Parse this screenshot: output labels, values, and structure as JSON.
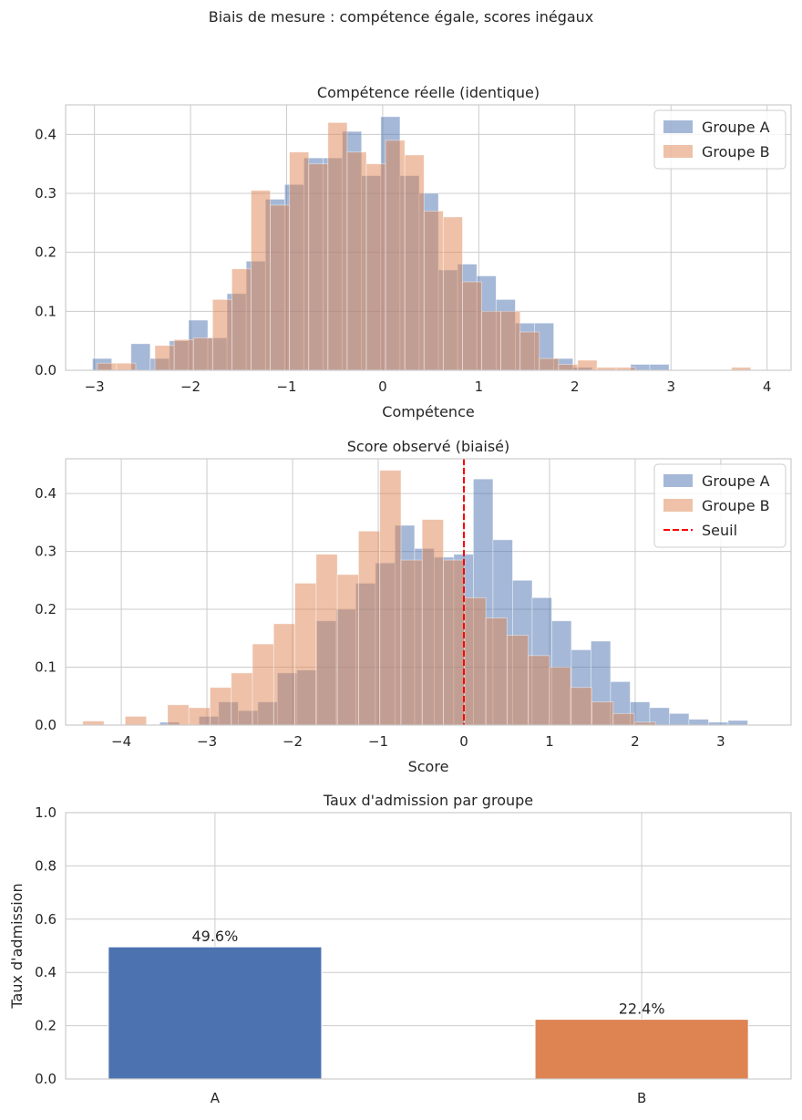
{
  "suptitle": "Biais de mesure : compétence égale, scores inégaux",
  "colors": {
    "A": "#4c72b0",
    "B": "#dd8452",
    "threshold": "#ff0000",
    "grid": "#cccccc",
    "spine": "#cccccc"
  },
  "chart_data": [
    {
      "type": "histogram",
      "title": "Compétence réelle (identique)",
      "xlabel": "Compétence",
      "ylabel": "",
      "xlim": [
        -3.3,
        4.25
      ],
      "ylim": [
        0,
        0.45
      ],
      "xticks": [
        -3,
        -2,
        -1,
        0,
        1,
        2,
        3,
        4
      ],
      "yticks": [
        0.0,
        0.1,
        0.2,
        0.3,
        0.4
      ],
      "grid": true,
      "legend": "top-right",
      "legend_entries": [
        "Groupe A",
        "Groupe B"
      ],
      "series": [
        {
          "name": "Groupe A",
          "bin_start": -3.02,
          "bin_width": 0.2,
          "values": [
            0.02,
            0.0,
            0.045,
            0.02,
            0.05,
            0.085,
            0.055,
            0.13,
            0.185,
            0.29,
            0.315,
            0.36,
            0.36,
            0.405,
            0.33,
            0.43,
            0.33,
            0.3,
            0.17,
            0.18,
            0.16,
            0.12,
            0.08,
            0.08,
            0.02,
            0.005,
            0.0,
            0.0,
            0.01,
            0.01,
            0.0,
            0.0,
            0.0,
            0.0,
            0.0
          ]
        },
        {
          "name": "Groupe B",
          "bin_start": -2.97,
          "bin_width": 0.2,
          "values": [
            0.012,
            0.012,
            0.0,
            0.042,
            0.052,
            0.055,
            0.12,
            0.172,
            0.305,
            0.28,
            0.37,
            0.35,
            0.42,
            0.37,
            0.35,
            0.39,
            0.365,
            0.27,
            0.26,
            0.15,
            0.1,
            0.1,
            0.065,
            0.02,
            0.01,
            0.017,
            0.005,
            0.005,
            0.0,
            0.0,
            0.0,
            0.0,
            0.0,
            0.005
          ]
        }
      ]
    },
    {
      "type": "histogram",
      "title": "Score observé (biaisé)",
      "xlabel": "Score",
      "ylabel": "",
      "xlim": [
        -4.65,
        3.82
      ],
      "ylim": [
        0,
        0.46
      ],
      "xticks": [
        -4,
        -3,
        -2,
        -1,
        0,
        1,
        2,
        3
      ],
      "yticks": [
        0.0,
        0.1,
        0.2,
        0.3,
        0.4
      ],
      "grid": true,
      "legend": "top-right",
      "legend_entries": [
        "Groupe A",
        "Groupe B",
        "Seuil"
      ],
      "threshold": {
        "name": "Seuil",
        "x": 0
      },
      "series": [
        {
          "name": "Groupe A",
          "bin_start": -3.55,
          "bin_width": 0.2288,
          "values": [
            0.005,
            0.0,
            0.015,
            0.04,
            0.025,
            0.04,
            0.09,
            0.095,
            0.18,
            0.2,
            0.245,
            0.28,
            0.345,
            0.305,
            0.29,
            0.295,
            0.425,
            0.32,
            0.25,
            0.22,
            0.18,
            0.13,
            0.145,
            0.075,
            0.04,
            0.03,
            0.02,
            0.01,
            0.005,
            0.008
          ]
        },
        {
          "name": "Groupe B",
          "bin_start": -4.45,
          "bin_width": 0.2477,
          "values": [
            0.007,
            0.0,
            0.015,
            0.0,
            0.035,
            0.03,
            0.065,
            0.09,
            0.14,
            0.175,
            0.245,
            0.295,
            0.26,
            0.335,
            0.44,
            0.285,
            0.355,
            0.285,
            0.22,
            0.185,
            0.155,
            0.12,
            0.1,
            0.065,
            0.04,
            0.02,
            0.005,
            0.0,
            0.0,
            0.0,
            0.0,
            0.0,
            0.0,
            0.0
          ]
        }
      ]
    },
    {
      "type": "bar",
      "title": "Taux d'admission par groupe",
      "xlabel": "",
      "ylabel": "Taux d'admission",
      "categories": [
        "A",
        "B"
      ],
      "values": [
        0.496,
        0.224
      ],
      "labels": [
        "49.6%",
        "22.4%"
      ],
      "ylim": [
        0,
        1.0
      ],
      "yticks": [
        0.0,
        0.2,
        0.4,
        0.6,
        0.8,
        1.0
      ],
      "grid": true
    }
  ]
}
